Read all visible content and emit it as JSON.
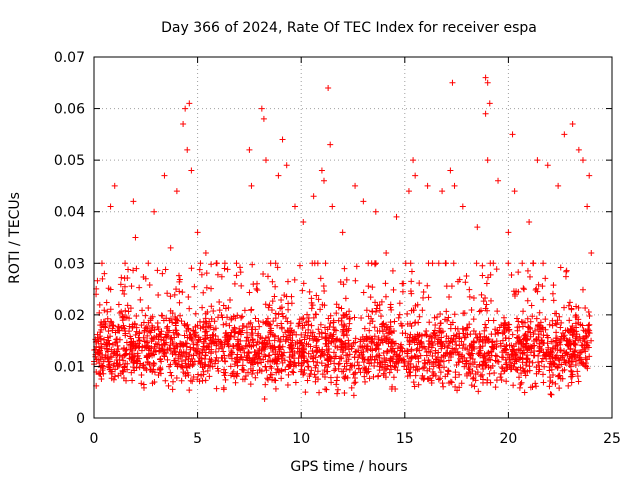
{
  "chart_data": {
    "type": "scatter",
    "title": "Day 366 of 2024, Rate Of TEC Index for receiver espa",
    "xlabel": "GPS time / hours",
    "ylabel": "ROTI / TECUs",
    "xlim": [
      0,
      25
    ],
    "ylim": [
      0,
      0.07
    ],
    "xticks": [
      0,
      5,
      10,
      15,
      20,
      25
    ],
    "xtick_labels": [
      "0",
      "5",
      "10",
      "15",
      "20",
      "25"
    ],
    "yticks": [
      0,
      0.01,
      0.02,
      0.03,
      0.04,
      0.05,
      0.06,
      0.07
    ],
    "ytick_labels": [
      "0",
      "0.01",
      "0.02",
      "0.03",
      "0.04",
      "0.05",
      "0.06",
      "0.07"
    ],
    "grid": true,
    "marker": "+",
    "color": "#ff0000",
    "series": [
      {
        "name": "ROTI",
        "points": [
          [
            0.1,
            0.024
          ],
          [
            0.3,
            0.018
          ],
          [
            0.5,
            0.028
          ],
          [
            0.8,
            0.041
          ],
          [
            1.0,
            0.045
          ],
          [
            1.2,
            0.022
          ],
          [
            1.5,
            0.03
          ],
          [
            1.9,
            0.042
          ],
          [
            2.0,
            0.035
          ],
          [
            2.5,
            0.027
          ],
          [
            2.9,
            0.04
          ],
          [
            3.3,
            0.028
          ],
          [
            3.4,
            0.047
          ],
          [
            3.7,
            0.033
          ],
          [
            4.0,
            0.044
          ],
          [
            4.3,
            0.057
          ],
          [
            4.4,
            0.06
          ],
          [
            4.6,
            0.061
          ],
          [
            4.5,
            0.052
          ],
          [
            4.7,
            0.048
          ],
          [
            5.0,
            0.036
          ],
          [
            5.4,
            0.032
          ],
          [
            5.9,
            0.03
          ],
          [
            6.3,
            0.029
          ],
          [
            6.8,
            0.026
          ],
          [
            7.5,
            0.052
          ],
          [
            7.6,
            0.045
          ],
          [
            8.1,
            0.06
          ],
          [
            8.2,
            0.058
          ],
          [
            8.3,
            0.05
          ],
          [
            8.9,
            0.047
          ],
          [
            9.1,
            0.054
          ],
          [
            9.3,
            0.049
          ],
          [
            9.7,
            0.041
          ],
          [
            10.1,
            0.038
          ],
          [
            10.6,
            0.043
          ],
          [
            11.0,
            0.048
          ],
          [
            11.1,
            0.046
          ],
          [
            11.3,
            0.064
          ],
          [
            11.4,
            0.053
          ],
          [
            11.5,
            0.041
          ],
          [
            12.0,
            0.036
          ],
          [
            12.6,
            0.045
          ],
          [
            13.0,
            0.042
          ],
          [
            13.6,
            0.04
          ],
          [
            14.1,
            0.032
          ],
          [
            14.6,
            0.039
          ],
          [
            15.2,
            0.044
          ],
          [
            15.4,
            0.05
          ],
          [
            15.5,
            0.047
          ],
          [
            16.1,
            0.045
          ],
          [
            16.8,
            0.044
          ],
          [
            17.3,
            0.065
          ],
          [
            17.2,
            0.048
          ],
          [
            17.4,
            0.045
          ],
          [
            17.8,
            0.041
          ],
          [
            18.5,
            0.037
          ],
          [
            18.9,
            0.066
          ],
          [
            19.0,
            0.065
          ],
          [
            18.9,
            0.059
          ],
          [
            19.1,
            0.061
          ],
          [
            19.0,
            0.05
          ],
          [
            19.5,
            0.046
          ],
          [
            20.0,
            0.036
          ],
          [
            20.2,
            0.055
          ],
          [
            20.3,
            0.044
          ],
          [
            21.0,
            0.038
          ],
          [
            21.4,
            0.05
          ],
          [
            21.9,
            0.049
          ],
          [
            22.4,
            0.045
          ],
          [
            22.7,
            0.055
          ],
          [
            23.1,
            0.057
          ],
          [
            23.4,
            0.052
          ],
          [
            23.6,
            0.05
          ],
          [
            23.8,
            0.041
          ],
          [
            23.9,
            0.047
          ],
          [
            24.0,
            0.032
          ]
        ],
        "dense_band": {
          "x_range": [
            0,
            24
          ],
          "y_range": [
            0.003,
            0.03
          ],
          "count": 2600
        }
      }
    ]
  }
}
